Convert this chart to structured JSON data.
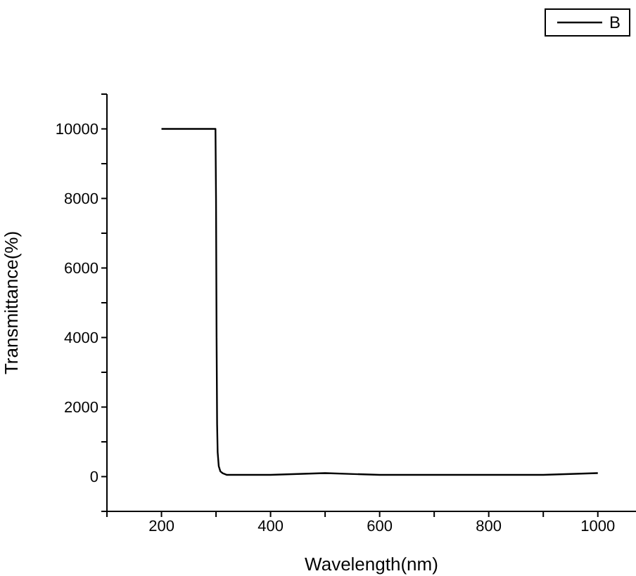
{
  "chart_data": {
    "type": "line",
    "xlabel": "Wavelength(nm)",
    "ylabel": "Transmittance(%)",
    "legend": "top right",
    "marker": "none",
    "xlim": [
      100,
      1070
    ],
    "xticks": [
      {
        "value": 100,
        "label": null
      },
      200,
      {
        "value": 300,
        "label": null
      },
      400,
      {
        "value": 500,
        "label": null
      },
      600,
      {
        "value": 700,
        "label": null
      },
      800,
      {
        "value": 900,
        "label": null
      },
      1000
    ],
    "ylim": [
      -1000,
      11000
    ],
    "yticks": [
      {
        "value": -1000,
        "label": null
      },
      0,
      {
        "value": 1000,
        "label": null
      },
      2000,
      {
        "value": 3000,
        "label": null
      },
      4000,
      {
        "value": 5000,
        "label": null
      },
      6000,
      {
        "value": 7000,
        "label": null
      },
      8000,
      {
        "value": 9000,
        "label": null
      },
      10000,
      {
        "value": 11000,
        "label": null
      }
    ],
    "series": [
      {
        "name": "B",
        "color": "#000000",
        "x": [
          200,
          250,
          299,
          300,
          301,
          302,
          303,
          305,
          308,
          312,
          320,
          340,
          400,
          500,
          600,
          700,
          800,
          900,
          1000
        ],
        "values": [
          10000,
          10000,
          10000,
          8000,
          4000,
          1500,
          700,
          300,
          150,
          100,
          50,
          50,
          50,
          100,
          50,
          50,
          50,
          50,
          100
        ]
      }
    ]
  }
}
